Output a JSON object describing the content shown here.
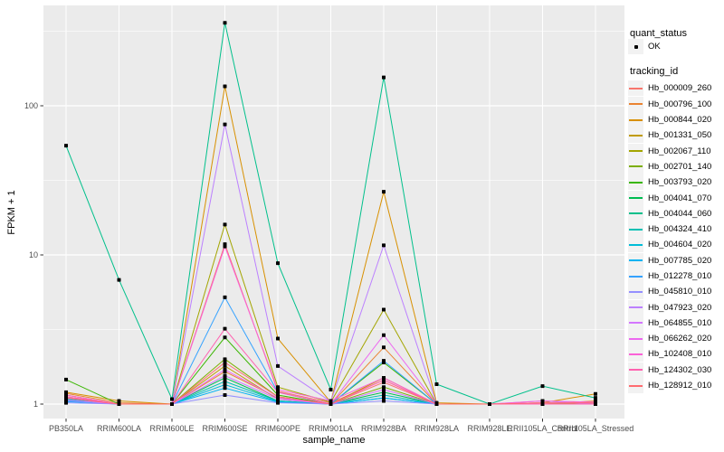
{
  "figure": {
    "background": "#FFFFFF",
    "panel_background": "#EBEBEB",
    "gridline_major": "#FFFFFF",
    "gridline_minor": "rgba(255,255,255,0.6)",
    "point_color": "#000000",
    "tick_mark_color": "#333333",
    "axis_text_color": "#4D4D4D",
    "legend_key_background": "#F2F2F2"
  },
  "axes": {
    "x_title": "sample_name",
    "y_title": "FPKM + 1",
    "y_tick_labels": [
      "1",
      "10",
      "100"
    ]
  },
  "legend": {
    "quant_title": "quant_status",
    "quant_items": [
      {
        "label": "OK",
        "marker": "black-point"
      }
    ],
    "tracking_title": "tracking_id"
  },
  "chart_data": {
    "type": "line",
    "title": "",
    "xlabel": "sample_name",
    "ylabel": "FPKM + 1",
    "y_scale": "log10",
    "ylim": [
      0.8,
      430
    ],
    "y_major_ticks": [
      1,
      10,
      100
    ],
    "y_minor_gridlines": [
      3.162,
      31.62,
      316.2
    ],
    "grid": true,
    "legend_position": "right",
    "point_shape": "small black square (quant_status OK) at every sample for every series",
    "categories": [
      "PB350LA",
      "RRIM600LA",
      "RRIM600LE",
      "RRIM600SE",
      "RRIM600PE",
      "RRIM901LA",
      "RRIM928BA",
      "RRIM928LA",
      "RRIM928LE",
      "RRII105LA_Control",
      "RRII105LA_Stressed"
    ],
    "series": [
      {
        "name": "Hb_000009_260",
        "color": "#F8766D",
        "values": [
          1.12,
          1.0,
          1.0,
          11.8,
          1.22,
          1.02,
          1.45,
          1.0,
          1.0,
          1.0,
          1.02
        ]
      },
      {
        "name": "Hb_000796_100",
        "color": "#EA8331",
        "values": [
          1.18,
          1.02,
          1.0,
          1.65,
          1.1,
          1.0,
          2.4,
          1.0,
          1.0,
          1.0,
          1.05
        ]
      },
      {
        "name": "Hb_000844_020",
        "color": "#D89000",
        "values": [
          1.2,
          1.05,
          1.0,
          135,
          2.75,
          1.03,
          26.5,
          1.02,
          1.0,
          1.02,
          1.17
        ]
      },
      {
        "name": "Hb_001331_050",
        "color": "#C09B00",
        "values": [
          1.15,
          1.0,
          1.0,
          1.8,
          1.08,
          1.0,
          1.5,
          1.0,
          1.0,
          1.0,
          1.0
        ]
      },
      {
        "name": "Hb_002067_110",
        "color": "#A3A500",
        "values": [
          1.05,
          1.0,
          1.0,
          16.0,
          1.3,
          1.03,
          4.3,
          1.0,
          1.0,
          1.0,
          1.02
        ]
      },
      {
        "name": "Hb_002701_140",
        "color": "#7CAE00",
        "values": [
          1.08,
          1.0,
          1.0,
          2.0,
          1.12,
          1.0,
          1.3,
          1.0,
          1.0,
          1.0,
          1.0
        ]
      },
      {
        "name": "Hb_003793_020",
        "color": "#39B600",
        "values": [
          1.46,
          1.0,
          1.0,
          2.8,
          1.15,
          1.0,
          1.9,
          1.0,
          1.0,
          1.0,
          1.0
        ]
      },
      {
        "name": "Hb_004041_070",
        "color": "#00BC51",
        "values": [
          1.05,
          1.0,
          1.0,
          1.5,
          1.05,
          1.0,
          1.2,
          1.0,
          1.0,
          1.0,
          1.0
        ]
      },
      {
        "name": "Hb_004044_060",
        "color": "#00C08B",
        "values": [
          54,
          6.8,
          1.08,
          360,
          8.8,
          1.25,
          155,
          1.36,
          1.0,
          1.32,
          1.1
        ]
      },
      {
        "name": "Hb_004324_410",
        "color": "#00C0B4",
        "values": [
          1.06,
          1.0,
          1.0,
          1.42,
          1.05,
          1.0,
          1.15,
          1.0,
          1.0,
          1.0,
          1.0
        ]
      },
      {
        "name": "Hb_004604_020",
        "color": "#00BCD8",
        "values": [
          1.08,
          1.0,
          1.0,
          1.35,
          1.04,
          1.0,
          1.1,
          1.0,
          1.0,
          1.0,
          1.0
        ]
      },
      {
        "name": "Hb_007785_020",
        "color": "#00B3F2",
        "values": [
          1.04,
          1.0,
          1.0,
          1.28,
          1.03,
          1.0,
          1.1,
          1.0,
          1.0,
          1.0,
          1.0
        ]
      },
      {
        "name": "Hb_012278_010",
        "color": "#35A2FF",
        "values": [
          1.05,
          1.0,
          1.0,
          5.2,
          1.2,
          1.0,
          1.95,
          1.0,
          1.0,
          1.0,
          1.0
        ]
      },
      {
        "name": "Hb_045810_010",
        "color": "#9590FF",
        "values": [
          1.02,
          1.0,
          1.0,
          1.15,
          1.02,
          1.0,
          1.05,
          1.0,
          1.0,
          1.0,
          1.0
        ]
      },
      {
        "name": "Hb_047923_020",
        "color": "#BC80FF",
        "values": [
          1.1,
          1.0,
          1.0,
          75,
          1.8,
          1.04,
          11.6,
          1.0,
          1.0,
          1.05,
          1.0
        ]
      },
      {
        "name": "Hb_064855_010",
        "color": "#D476FF",
        "values": [
          1.06,
          1.0,
          1.0,
          1.55,
          1.08,
          1.0,
          1.25,
          1.0,
          1.0,
          1.0,
          1.0
        ]
      },
      {
        "name": "Hb_066262_020",
        "color": "#ED68F0",
        "values": [
          1.1,
          1.0,
          1.0,
          1.7,
          1.1,
          1.0,
          2.9,
          1.0,
          1.0,
          1.02,
          1.02
        ]
      },
      {
        "name": "Hb_102408_010",
        "color": "#FB61D7",
        "values": [
          1.15,
          1.0,
          1.0,
          11.4,
          1.25,
          1.05,
          1.5,
          1.0,
          1.0,
          1.05,
          1.03
        ]
      },
      {
        "name": "Hb_124302_030",
        "color": "#FF62B0",
        "values": [
          1.12,
          1.0,
          1.0,
          3.2,
          1.2,
          1.0,
          1.45,
          1.0,
          1.0,
          1.0,
          1.0
        ]
      },
      {
        "name": "Hb_128912_010",
        "color": "#FF6B70",
        "values": [
          1.1,
          1.0,
          1.0,
          1.9,
          1.12,
          1.0,
          1.4,
          1.0,
          1.0,
          1.02,
          1.02
        ]
      }
    ]
  }
}
